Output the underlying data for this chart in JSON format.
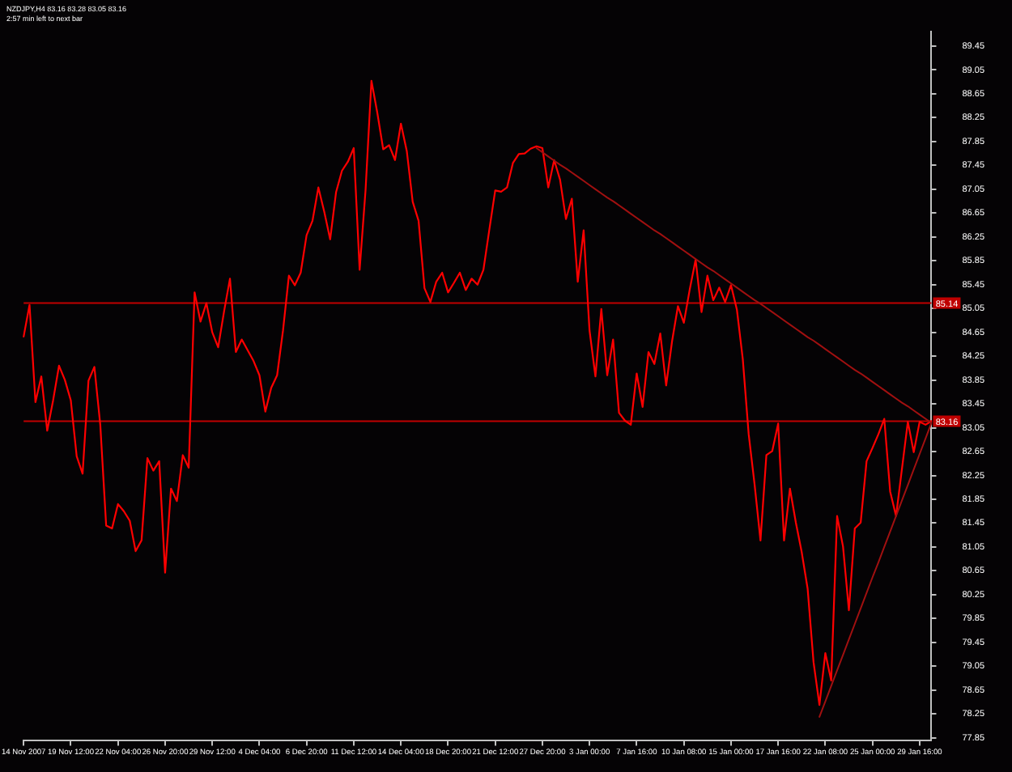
{
  "chart_data": {
    "type": "line",
    "title": "NZDJPY,H4 83.16 83.28 83.05 83.16",
    "subtitle": "2:57 min left to next bar",
    "categories": [
      "14 Nov 2007",
      null,
      null,
      null,
      null,
      null,
      null,
      null,
      "19 Nov 12:00",
      null,
      null,
      null,
      null,
      null,
      null,
      null,
      "22 Nov 04:00",
      null,
      null,
      null,
      null,
      null,
      null,
      null,
      "26 Nov 20:00",
      null,
      null,
      null,
      null,
      null,
      null,
      null,
      "29 Nov 12:00",
      null,
      null,
      null,
      null,
      null,
      null,
      null,
      "4 Dec 04:00",
      null,
      null,
      null,
      null,
      null,
      null,
      null,
      "6 Dec 20:00",
      null,
      null,
      null,
      null,
      null,
      null,
      null,
      "11 Dec 12:00",
      null,
      null,
      null,
      null,
      null,
      null,
      null,
      "14 Dec 04:00",
      null,
      null,
      null,
      null,
      null,
      null,
      null,
      "18 Dec 20:00",
      null,
      null,
      null,
      null,
      null,
      null,
      null,
      "21 Dec 12:00",
      null,
      null,
      null,
      null,
      null,
      null,
      null,
      "27 Dec 20:00",
      null,
      null,
      null,
      null,
      null,
      null,
      null,
      "3 Jan 00:00",
      null,
      null,
      null,
      null,
      null,
      null,
      null,
      "7 Jan 16:00",
      null,
      null,
      null,
      null,
      null,
      null,
      null,
      "10 Jan 08:00",
      null,
      null,
      null,
      null,
      null,
      null,
      null,
      "15 Jan 00:00",
      null,
      null,
      null,
      null,
      null,
      null,
      null,
      "17 Jan 16:00",
      null,
      null,
      null,
      null,
      null,
      null,
      null,
      "22 Jan 08:00",
      null,
      null,
      null,
      null,
      null,
      null,
      null,
      "25 Jan 00:00",
      null,
      null,
      null,
      null,
      null,
      null,
      null,
      "29 Jan 16:00",
      null,
      null
    ],
    "series": [
      {
        "color": "#ff0000",
        "values": [
          84.58,
          85.11,
          83.48,
          83.91,
          83.0,
          83.51,
          84.09,
          83.85,
          83.51,
          82.57,
          82.28,
          83.84,
          84.07,
          83.1,
          81.41,
          81.36,
          81.77,
          81.65,
          81.49,
          80.98,
          81.16,
          82.54,
          82.33,
          82.49,
          80.62,
          82.03,
          81.82,
          82.59,
          82.38,
          85.32,
          84.83,
          85.14,
          84.65,
          84.4,
          85.0,
          85.55,
          84.32,
          84.53,
          84.35,
          84.17,
          83.93,
          83.32,
          83.72,
          83.93,
          84.68,
          85.6,
          85.44,
          85.65,
          86.28,
          86.52,
          87.08,
          86.67,
          86.21,
          87.0,
          87.36,
          87.51,
          87.74,
          85.7,
          87.03,
          88.87,
          88.33,
          87.72,
          87.79,
          87.54,
          88.15,
          87.69,
          86.84,
          86.52,
          85.39,
          85.16,
          85.5,
          85.65,
          85.32,
          85.48,
          85.65,
          85.36,
          85.55,
          85.45,
          85.7,
          86.37,
          87.03,
          87.01,
          87.08,
          87.49,
          87.64,
          87.65,
          87.73,
          87.77,
          87.74,
          87.08,
          87.54,
          87.21,
          86.55,
          86.89,
          85.5,
          86.36,
          84.68,
          83.91,
          85.04,
          83.93,
          84.53,
          83.3,
          83.17,
          83.1,
          83.96,
          83.4,
          84.32,
          84.12,
          84.63,
          83.76,
          84.5,
          85.09,
          84.81,
          85.37,
          85.87,
          84.99,
          85.6,
          85.19,
          85.4,
          85.16,
          85.44,
          85.03,
          84.2,
          82.94,
          82.1,
          81.16,
          82.59,
          82.66,
          83.12,
          81.16,
          82.03,
          81.46,
          80.96,
          80.35,
          79.12,
          78.4,
          79.27,
          78.81,
          81.57,
          81.06,
          79.99,
          81.36,
          81.46,
          82.49,
          82.71,
          82.94,
          83.2,
          81.98,
          81.57,
          82.36,
          83.15,
          82.64,
          83.15,
          83.1,
          83.16
        ]
      },
      {
        "color": "#a01010",
        "values": [
          null,
          null,
          null,
          null,
          null,
          null,
          null,
          null,
          null,
          null,
          null,
          null,
          null,
          null,
          null,
          null,
          null,
          null,
          null,
          null,
          null,
          null,
          null,
          null,
          null,
          null,
          null,
          null,
          null,
          null,
          null,
          null,
          null,
          null,
          null,
          null,
          null,
          null,
          null,
          null,
          null,
          null,
          null,
          null,
          null,
          null,
          null,
          null,
          null,
          null,
          null,
          null,
          null,
          null,
          null,
          null,
          null,
          null,
          null,
          null,
          null,
          null,
          null,
          null,
          null,
          null,
          null,
          null,
          null,
          null,
          null,
          null,
          null,
          null,
          null,
          null,
          null,
          null,
          null,
          null,
          null,
          null,
          null,
          null,
          null,
          null,
          null,
          87.74,
          87.67,
          87.6,
          87.53,
          87.46,
          87.4,
          87.33,
          87.26,
          87.19,
          87.12,
          87.05,
          86.98,
          86.91,
          86.85,
          86.78,
          86.71,
          86.64,
          86.57,
          86.5,
          86.43,
          86.36,
          86.3,
          86.23,
          86.16,
          86.09,
          86.02,
          85.95,
          85.88,
          85.81,
          85.74,
          85.68,
          85.61,
          85.54,
          85.47,
          85.4,
          85.33,
          85.26,
          85.19,
          85.13,
          85.06,
          84.99,
          84.92,
          84.85,
          84.78,
          84.71,
          84.64,
          84.57,
          84.51,
          84.44,
          84.37,
          84.3,
          84.23,
          84.16,
          84.09,
          84.02,
          83.96,
          83.89,
          83.82,
          83.75,
          83.68,
          83.61,
          83.54,
          83.47,
          83.41,
          83.34,
          83.27,
          83.2,
          83.13
        ]
      },
      {
        "color": "#a01010",
        "values": [
          null,
          null,
          null,
          null,
          null,
          null,
          null,
          null,
          null,
          null,
          null,
          null,
          null,
          null,
          null,
          null,
          null,
          null,
          null,
          null,
          null,
          null,
          null,
          null,
          null,
          null,
          null,
          null,
          null,
          null,
          null,
          null,
          null,
          null,
          null,
          null,
          null,
          null,
          null,
          null,
          null,
          null,
          null,
          null,
          null,
          null,
          null,
          null,
          null,
          null,
          null,
          null,
          null,
          null,
          null,
          null,
          null,
          null,
          null,
          null,
          null,
          null,
          null,
          null,
          null,
          null,
          null,
          null,
          null,
          null,
          null,
          null,
          null,
          null,
          null,
          null,
          null,
          null,
          null,
          null,
          null,
          null,
          null,
          null,
          null,
          null,
          null,
          null,
          null,
          null,
          null,
          null,
          null,
          null,
          null,
          null,
          null,
          null,
          null,
          null,
          null,
          null,
          null,
          null,
          null,
          null,
          null,
          null,
          null,
          null,
          null,
          null,
          null,
          null,
          null,
          null,
          null,
          null,
          null,
          null,
          null,
          null,
          null,
          null,
          null,
          null,
          null,
          null,
          null,
          null,
          null,
          null,
          null,
          null,
          null,
          78.2,
          78.46,
          78.72,
          78.98,
          79.24,
          79.5,
          79.76,
          80.02,
          80.28,
          80.54,
          80.79,
          81.05,
          81.31,
          81.57,
          81.83,
          82.09,
          82.35,
          82.61,
          82.87,
          83.13
        ]
      }
    ],
    "ylim": [
      77.8,
      89.7
    ],
    "yticks": [
      77.85,
      78.25,
      78.65,
      79.05,
      79.45,
      79.85,
      80.25,
      80.65,
      81.05,
      81.45,
      81.85,
      82.25,
      82.65,
      83.05,
      83.45,
      83.85,
      84.25,
      84.65,
      85.05,
      85.45,
      85.85,
      86.25,
      86.65,
      87.05,
      87.45,
      87.85,
      88.25,
      88.65,
      89.05,
      89.45
    ],
    "ref_lines": [
      {
        "axis": "y",
        "value": 85.14,
        "label": "85.14",
        "color": "#c00000"
      },
      {
        "axis": "y",
        "value": 83.16,
        "label": "83.16",
        "color": "#c00000"
      }
    ],
    "grid": false,
    "marker": "none",
    "line_style": "solid"
  }
}
